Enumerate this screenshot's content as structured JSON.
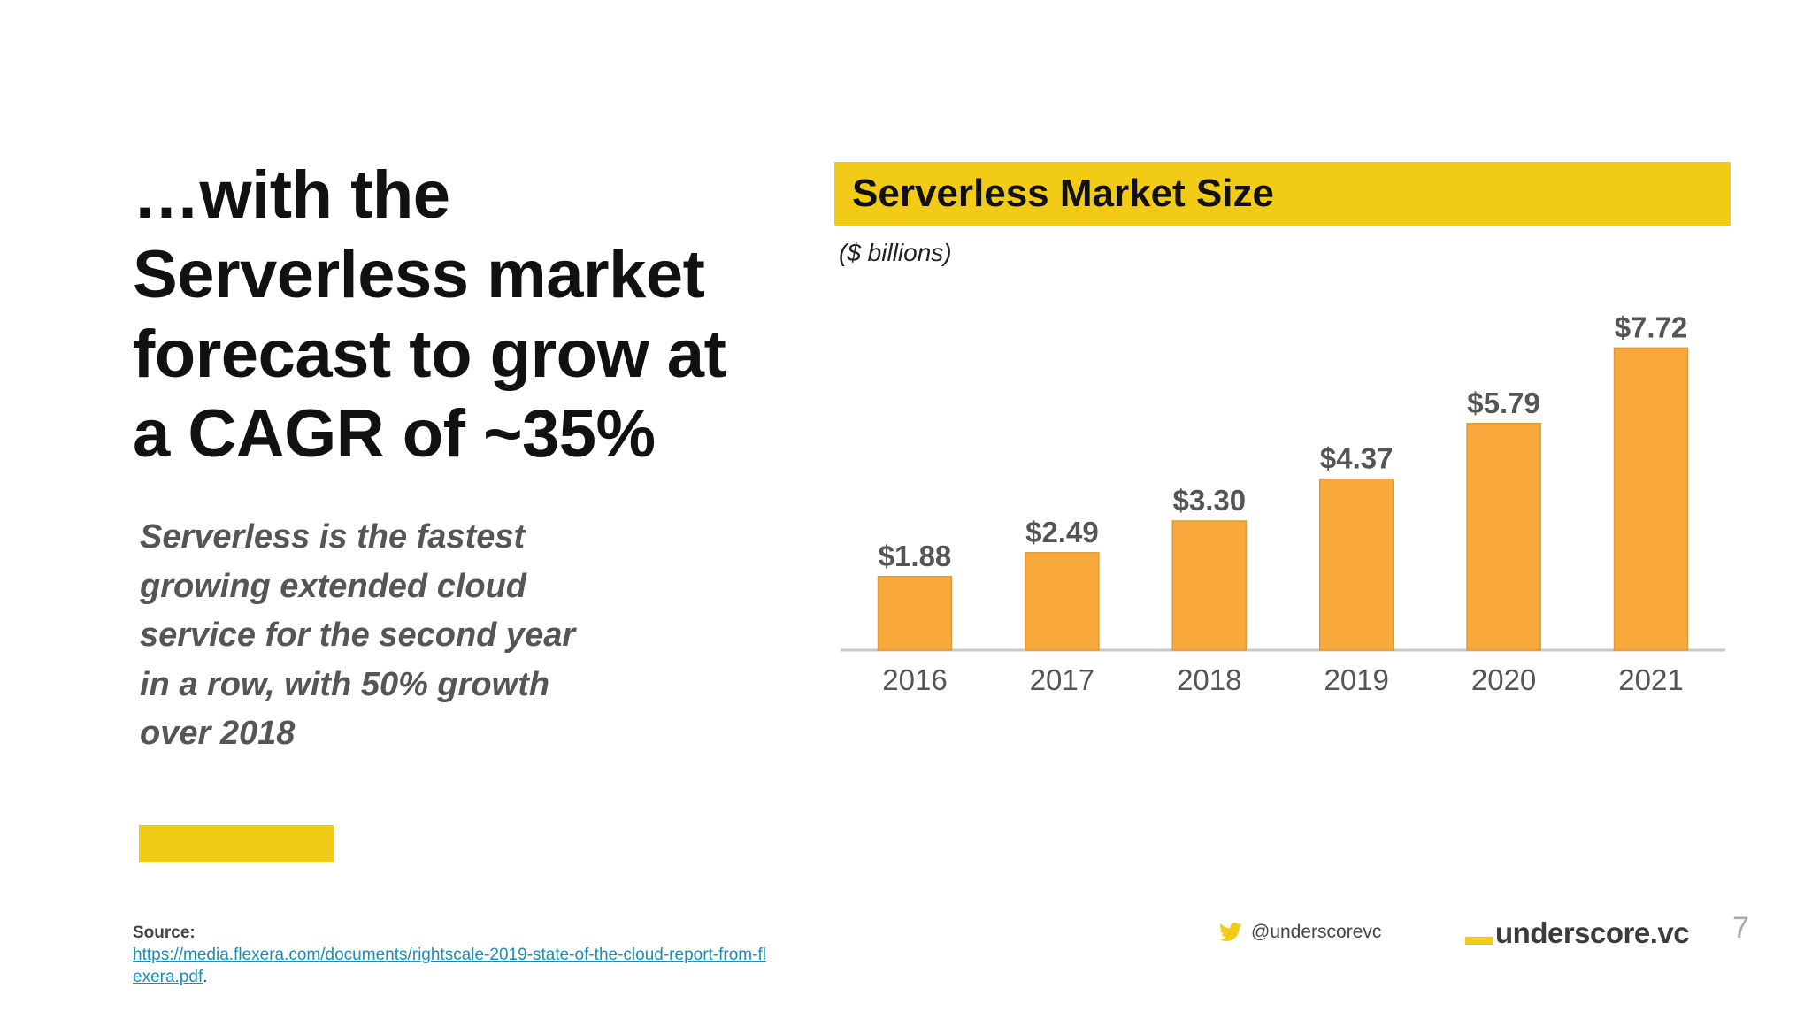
{
  "slide": {
    "headline": "…with the Serverless market forecast to grow at a CAGR of ~35%",
    "subtext": "Serverless is the fastest growing extended cloud service for the second year in a row, with 50% growth over 2018",
    "source_label": "Source:",
    "source_url": "https://media.flexera.com/documents/rightscale-2019-state-of-the-cloud-report-from-flexera.pdf",
    "source_suffix": ".",
    "twitter_handle": "@underscorevc",
    "brand": "underscore.vc",
    "page_number": "7",
    "icons": {
      "twitter": "twitter-bird-icon"
    }
  },
  "colors": {
    "accent_yellow": "#f2cb16",
    "bar_orange": "#f9a83b",
    "axis_gray": "#c8c8c8",
    "label_gray": "#555555",
    "link": "#1a8fb5"
  },
  "chart_data": {
    "type": "bar",
    "title": "Serverless Market Size",
    "unit_label": "($ billions)",
    "categories": [
      "2016",
      "2017",
      "2018",
      "2019",
      "2020",
      "2021"
    ],
    "values": [
      1.88,
      2.49,
      3.3,
      4.37,
      5.79,
      7.72
    ],
    "data_labels": [
      "$1.88",
      "$2.49",
      "$3.30",
      "$4.37",
      "$5.79",
      "$7.72"
    ],
    "ylim": [
      0,
      8
    ],
    "grid": false,
    "legend": "none"
  }
}
